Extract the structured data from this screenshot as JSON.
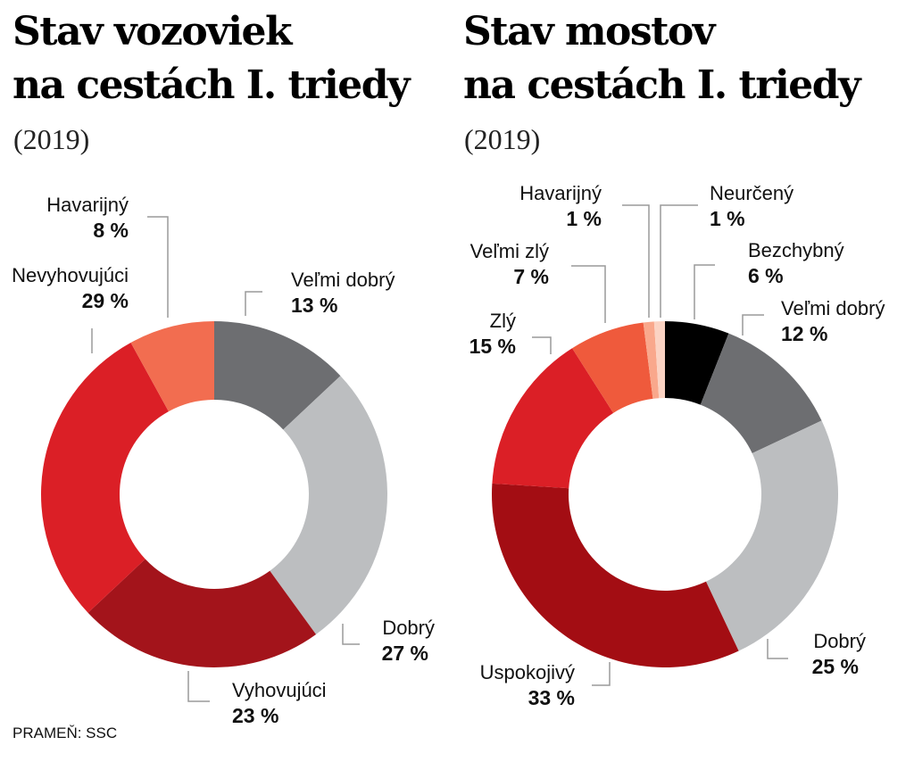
{
  "source": "PRAMEŇ: SSC",
  "chart_data": [
    {
      "type": "pie",
      "title_line1": "Stav vozoviek",
      "title_line2": "na cestách I. triedy",
      "subtitle": "(2019)",
      "slices": [
        {
          "label": "Veľmi dobrý",
          "value": 13,
          "display": "13 %",
          "color": "#6d6e71"
        },
        {
          "label": "Dobrý",
          "value": 27,
          "display": "27 %",
          "color": "#bcbec0"
        },
        {
          "label": "Vyhovujúci",
          "value": 23,
          "display": "23 %",
          "color": "#a3141b"
        },
        {
          "label": "Nevyhovujúci",
          "value": 29,
          "display": "29 %",
          "color": "#db1f26"
        },
        {
          "label": "Havarijný",
          "value": 8,
          "display": "8 %",
          "color": "#f26d50"
        }
      ]
    },
    {
      "type": "pie",
      "title_line1": "Stav mostov",
      "title_line2": "na cestách I. triedy",
      "subtitle": "(2019)",
      "slices": [
        {
          "label": "Bezchybný",
          "value": 6,
          "display": "6 %",
          "color": "#000000"
        },
        {
          "label": "Veľmi dobrý",
          "value": 12,
          "display": "12 %",
          "color": "#6d6e71"
        },
        {
          "label": "Dobrý",
          "value": 25,
          "display": "25 %",
          "color": "#bcbec0"
        },
        {
          "label": "Uspokojivý",
          "value": 33,
          "display": "33 %",
          "color": "#a30d13"
        },
        {
          "label": "Zlý",
          "value": 15,
          "display": "15 %",
          "color": "#db1f26"
        },
        {
          "label": "Veľmi zlý",
          "value": 7,
          "display": "7 %",
          "color": "#ef5a3c"
        },
        {
          "label": "Havarijný",
          "value": 1,
          "display": "1 %",
          "color": "#f9a88c"
        },
        {
          "label": "Neurčený",
          "value": 1,
          "display": "1 %",
          "color": "#fbd3c3"
        }
      ]
    }
  ]
}
